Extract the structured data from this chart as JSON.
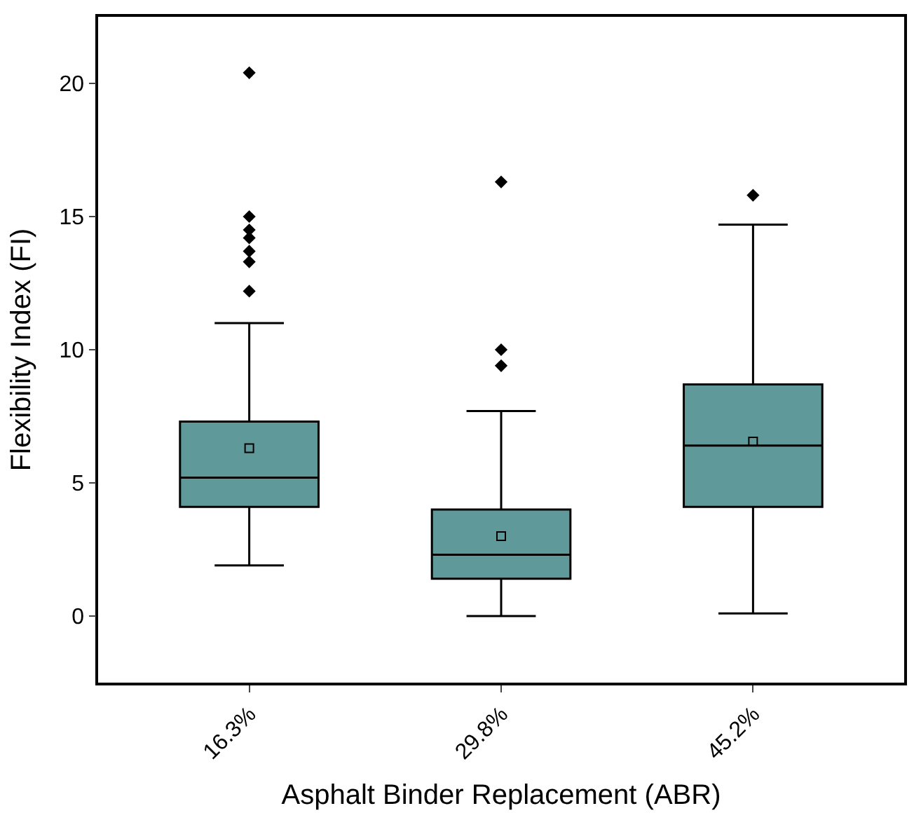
{
  "chart_data": {
    "type": "box",
    "xlabel": "Asphalt Binder Replacement (ABR)",
    "ylabel": "Flexibility Index (FI)",
    "categories": [
      "16.3%",
      "29.8%",
      "45.2%"
    ],
    "color": "#5f9999",
    "boxes": [
      {
        "low": 1.9,
        "q1": 4.1,
        "median": 5.2,
        "q3": 7.3,
        "high": 11.0,
        "mean": 6.3,
        "outliers": [
          12.2,
          13.3,
          13.7,
          14.2,
          14.5,
          15.0,
          20.4
        ]
      },
      {
        "low": 0.0,
        "q1": 1.4,
        "median": 2.3,
        "q3": 4.0,
        "high": 7.7,
        "mean": 3.0,
        "outliers": [
          9.4,
          10.0,
          16.3
        ]
      },
      {
        "low": 0.1,
        "q1": 4.1,
        "median": 6.4,
        "q3": 8.7,
        "high": 14.7,
        "mean": 6.55,
        "outliers": [
          15.8
        ]
      }
    ],
    "ylim": [
      -2.5,
      22.5
    ],
    "yticks": [
      0,
      5,
      10,
      15,
      20
    ]
  }
}
